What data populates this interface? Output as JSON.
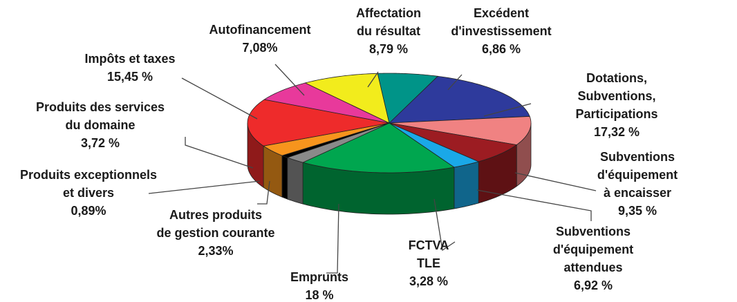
{
  "chart_data": {
    "type": "pie",
    "categories": [
      "Dotations, Subventions,\nParticipations",
      "Subventions d'équipement\nà encaisser",
      "Subventions d'équipement\nattendues",
      "FCTVA\nTLE",
      "Emprunts",
      "Autres produits\nde gestion courante",
      "Produits exceptionnels\net divers",
      "Produits des services\ndu domaine",
      "Impôts et taxes",
      "Autofinancement",
      "Affectation\ndu résultat",
      "Excédent\nd'investissement"
    ],
    "values": [
      17.32,
      9.35,
      6.92,
      3.28,
      18,
      2.33,
      0.89,
      3.72,
      15.45,
      7.08,
      8.79,
      6.86
    ],
    "value_labels": [
      "17,32 %",
      "9,35 %",
      "6,92 %",
      "3,28 %",
      "18 %",
      "2,33%",
      "0,89%",
      "3,72 %",
      "15,45 %",
      "7,08%",
      "8,79 %",
      "6,86 %"
    ],
    "colors": [
      "#2e3a9c",
      "#f08282",
      "#9c1c22",
      "#1aa8e8",
      "#00a64f",
      "#8a8a8a",
      "#000000",
      "#f7941d",
      "#ee2b2b",
      "#e8399b",
      "#f2ec1c",
      "#009488"
    ]
  }
}
